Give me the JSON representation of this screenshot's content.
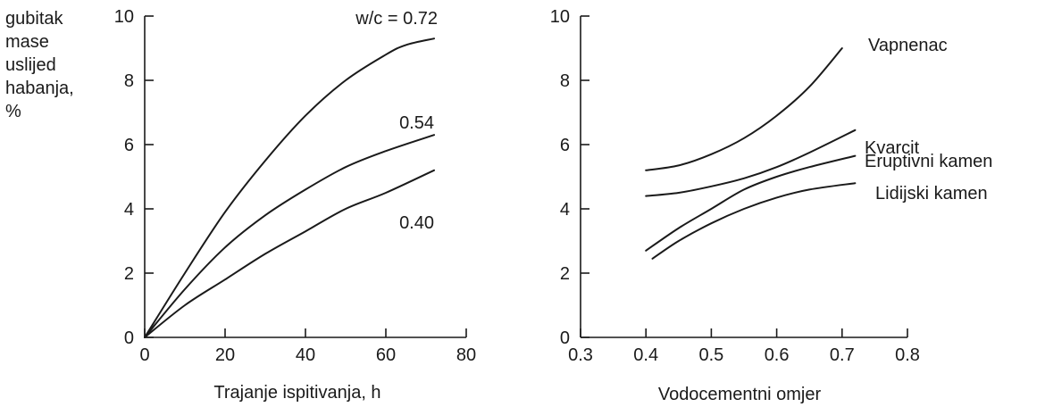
{
  "chart_data": [
    {
      "type": "line",
      "title": "",
      "xlabel": "Trajanje ispitivanja, h",
      "ylabel_lines": [
        "gubitak",
        "mase",
        "uslijed",
        "habanja,",
        "%"
      ],
      "xlim": [
        0,
        80
      ],
      "ylim": [
        0,
        10
      ],
      "xticks": [
        "0",
        "20",
        "40",
        "60",
        "80"
      ],
      "yticks": [
        "0",
        "2",
        "4",
        "6",
        "8",
        "10"
      ],
      "grid": false,
      "series": [
        {
          "name": "w/c = 0.72",
          "x": [
            0,
            10,
            20,
            30,
            40,
            50,
            60,
            65,
            72
          ],
          "y": [
            0,
            2.0,
            3.9,
            5.5,
            6.9,
            8.0,
            8.8,
            9.1,
            9.3
          ]
        },
        {
          "name": "0.54",
          "x": [
            0,
            10,
            20,
            30,
            40,
            50,
            60,
            72
          ],
          "y": [
            0,
            1.5,
            2.8,
            3.8,
            4.6,
            5.3,
            5.8,
            6.3
          ]
        },
        {
          "name": "0.40",
          "x": [
            0,
            10,
            20,
            30,
            40,
            50,
            60,
            72
          ],
          "y": [
            0,
            1.0,
            1.8,
            2.6,
            3.3,
            4.0,
            4.5,
            5.2
          ]
        }
      ]
    },
    {
      "type": "line",
      "title": "",
      "xlabel": "Vodocementni omjer",
      "ylabel": "",
      "xlim": [
        0.3,
        0.8
      ],
      "ylim": [
        0,
        10
      ],
      "xticks": [
        "0.3",
        "0.4",
        "0.5",
        "0.6",
        "0.7",
        "0.8"
      ],
      "yticks": [
        "0",
        "2",
        "4",
        "6",
        "8",
        "10"
      ],
      "grid": false,
      "series": [
        {
          "name": "Vapnenac",
          "x": [
            0.4,
            0.45,
            0.5,
            0.55,
            0.6,
            0.65,
            0.7
          ],
          "y": [
            5.2,
            5.35,
            5.7,
            6.2,
            6.9,
            7.8,
            9.0
          ]
        },
        {
          "name": "Kvarcit",
          "x": [
            0.4,
            0.45,
            0.5,
            0.55,
            0.6,
            0.65,
            0.72
          ],
          "y": [
            4.4,
            4.5,
            4.7,
            4.95,
            5.3,
            5.75,
            6.45
          ]
        },
        {
          "name": "Eruptivni kamen",
          "x": [
            0.4,
            0.45,
            0.5,
            0.55,
            0.6,
            0.65,
            0.72
          ],
          "y": [
            2.7,
            3.4,
            4.0,
            4.6,
            5.0,
            5.3,
            5.65
          ]
        },
        {
          "name": "Lidijski kamen",
          "x": [
            0.41,
            0.45,
            0.5,
            0.55,
            0.6,
            0.65,
            0.72
          ],
          "y": [
            2.45,
            3.0,
            3.55,
            4.0,
            4.35,
            4.6,
            4.8
          ]
        }
      ]
    }
  ]
}
